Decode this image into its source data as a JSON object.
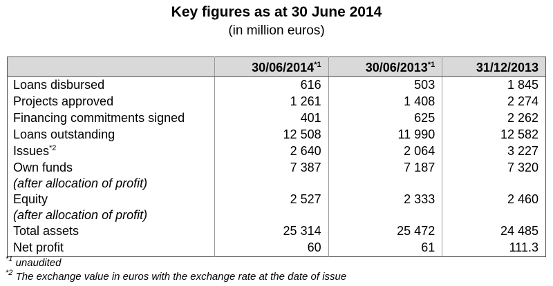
{
  "header": {
    "title": "Key figures as at 30 June 2014",
    "subtitle": "(in million euros)"
  },
  "table": {
    "columns": [
      {
        "label": "30/06/2014",
        "sup": "*1"
      },
      {
        "label": "30/06/2013",
        "sup": "*1"
      },
      {
        "label": "31/12/2013"
      }
    ],
    "rows": [
      {
        "label": "Loans disbursed",
        "values": [
          "616",
          "503",
          "1 845"
        ]
      },
      {
        "label": "Projects approved",
        "values": [
          "1 261",
          "1 408",
          "2 274"
        ]
      },
      {
        "label": "Financing commitments signed",
        "values": [
          "401",
          "625",
          "2 262"
        ]
      },
      {
        "label": "Loans outstanding",
        "values": [
          "12 508",
          "11 990",
          "12 582"
        ]
      },
      {
        "label": "Issues",
        "sup": "*2",
        "values": [
          "2 640",
          "2 064",
          "3 227"
        ]
      },
      {
        "label": "Own funds",
        "note": "(after allocation of profit)",
        "values": [
          "7 387",
          "7 187",
          "7 320"
        ]
      },
      {
        "label": "Equity",
        "note": "(after allocation of profit)",
        "values": [
          "2 527",
          "2 333",
          "2 460"
        ]
      },
      {
        "label": "Total assets",
        "values": [
          "25 314",
          "25 472",
          "24 485"
        ]
      },
      {
        "label": "Net profit",
        "values": [
          "60",
          "61",
          "111.3"
        ]
      }
    ]
  },
  "footnotes": [
    {
      "mark": "*1",
      "text": " unaudited"
    },
    {
      "mark": "*2",
      "text": " The exchange value in euros with the exchange rate at the date of issue"
    }
  ]
}
